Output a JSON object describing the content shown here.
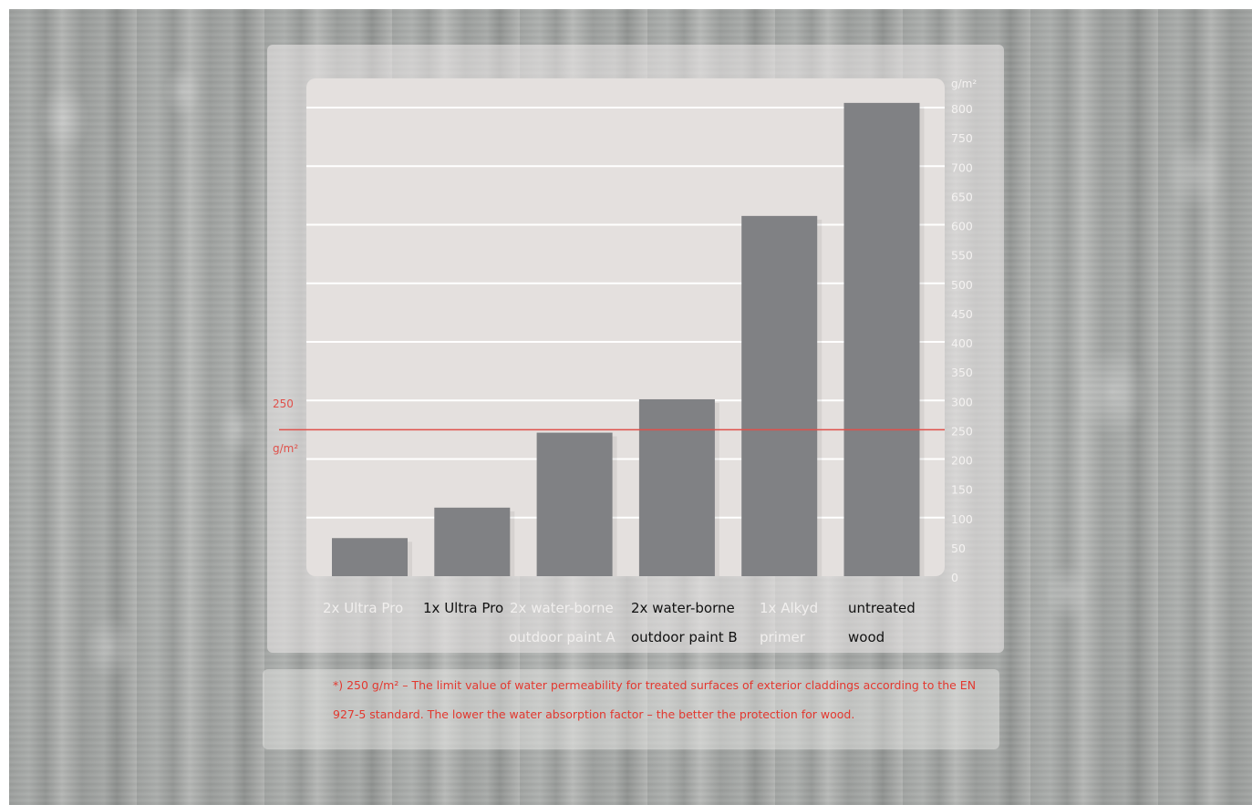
{
  "chart_data": {
    "type": "bar",
    "ylabel": "g/m²",
    "ylim": [
      0,
      850
    ],
    "yticks": [
      0,
      50,
      100,
      150,
      200,
      250,
      300,
      350,
      400,
      450,
      500,
      550,
      600,
      650,
      700,
      750,
      800
    ],
    "categories": [
      [
        "2x Ultra Pro"
      ],
      [
        "1x Ultra Pro"
      ],
      [
        "2x water-borne",
        "outdoor paint A"
      ],
      [
        "2x water-borne",
        "outdoor paint B"
      ],
      [
        "1x Alkyd",
        "primer"
      ],
      [
        "untreated",
        "wood"
      ]
    ],
    "category_label_colors": [
      "#f1efee",
      "#111111",
      "#f1efee",
      "#111111",
      "#f1efee",
      "#111111"
    ],
    "values": [
      65,
      117,
      245,
      302,
      615,
      808
    ],
    "bar_color": "#808184",
    "grid": true,
    "gridlines": [
      100,
      200,
      300,
      400,
      500,
      600,
      700,
      800
    ],
    "reference_line": {
      "value": 250,
      "label_value": "250",
      "label_unit": "g/m²",
      "color": "#e0504a"
    }
  },
  "footnote": "*) 250 g/m² – The limit value of water permeability for treated surfaces of exterior claddings according to the EN 927-5 standard. The lower the water absorption factor – the better the protection for wood.",
  "colors": {
    "tick_text": "#f4f2f1",
    "footnote_text": "#e3382f",
    "plot_background": "#e4e0de"
  }
}
